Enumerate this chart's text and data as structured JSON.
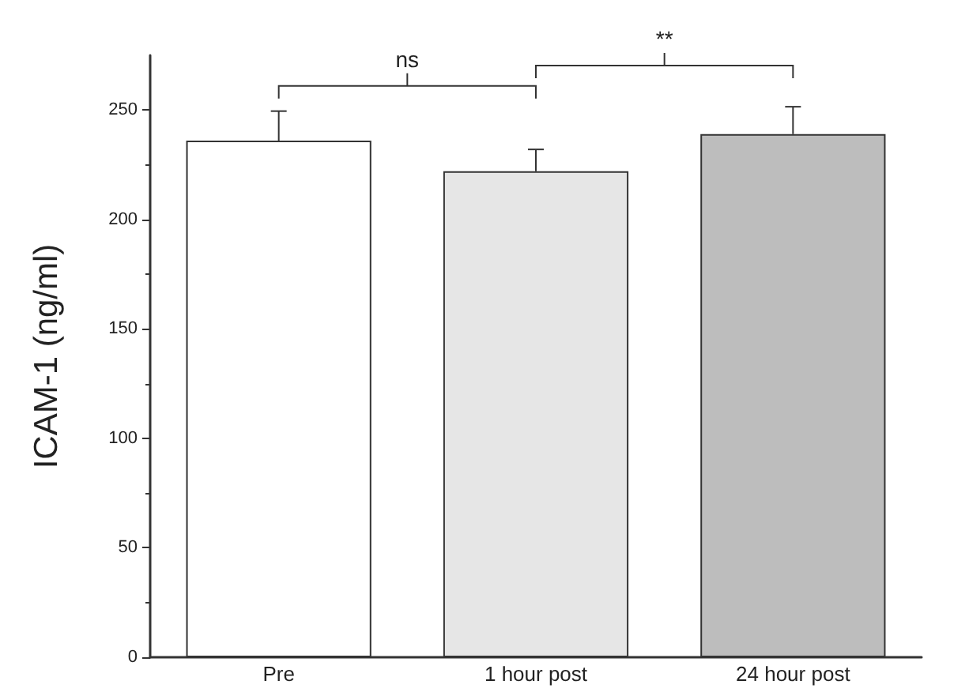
{
  "chart_data": {
    "type": "bar",
    "ylabel": "ICAM-1 (ng/ml)",
    "categories": [
      "Pre",
      "1 hour post",
      "24 hour post"
    ],
    "values": [
      236,
      222,
      239
    ],
    "colors": [
      "#ffffff",
      "#e6e6e6",
      "#bdbdbd"
    ],
    "errors": [
      [
        236,
        249.5
      ],
      [
        222,
        232
      ],
      [
        239,
        251.5
      ]
    ],
    "ylim": [
      0,
      275
    ],
    "yticks": [
      0,
      50,
      100,
      150,
      200,
      250
    ],
    "grid": false,
    "annotations": [
      "ns",
      "**"
    ]
  }
}
